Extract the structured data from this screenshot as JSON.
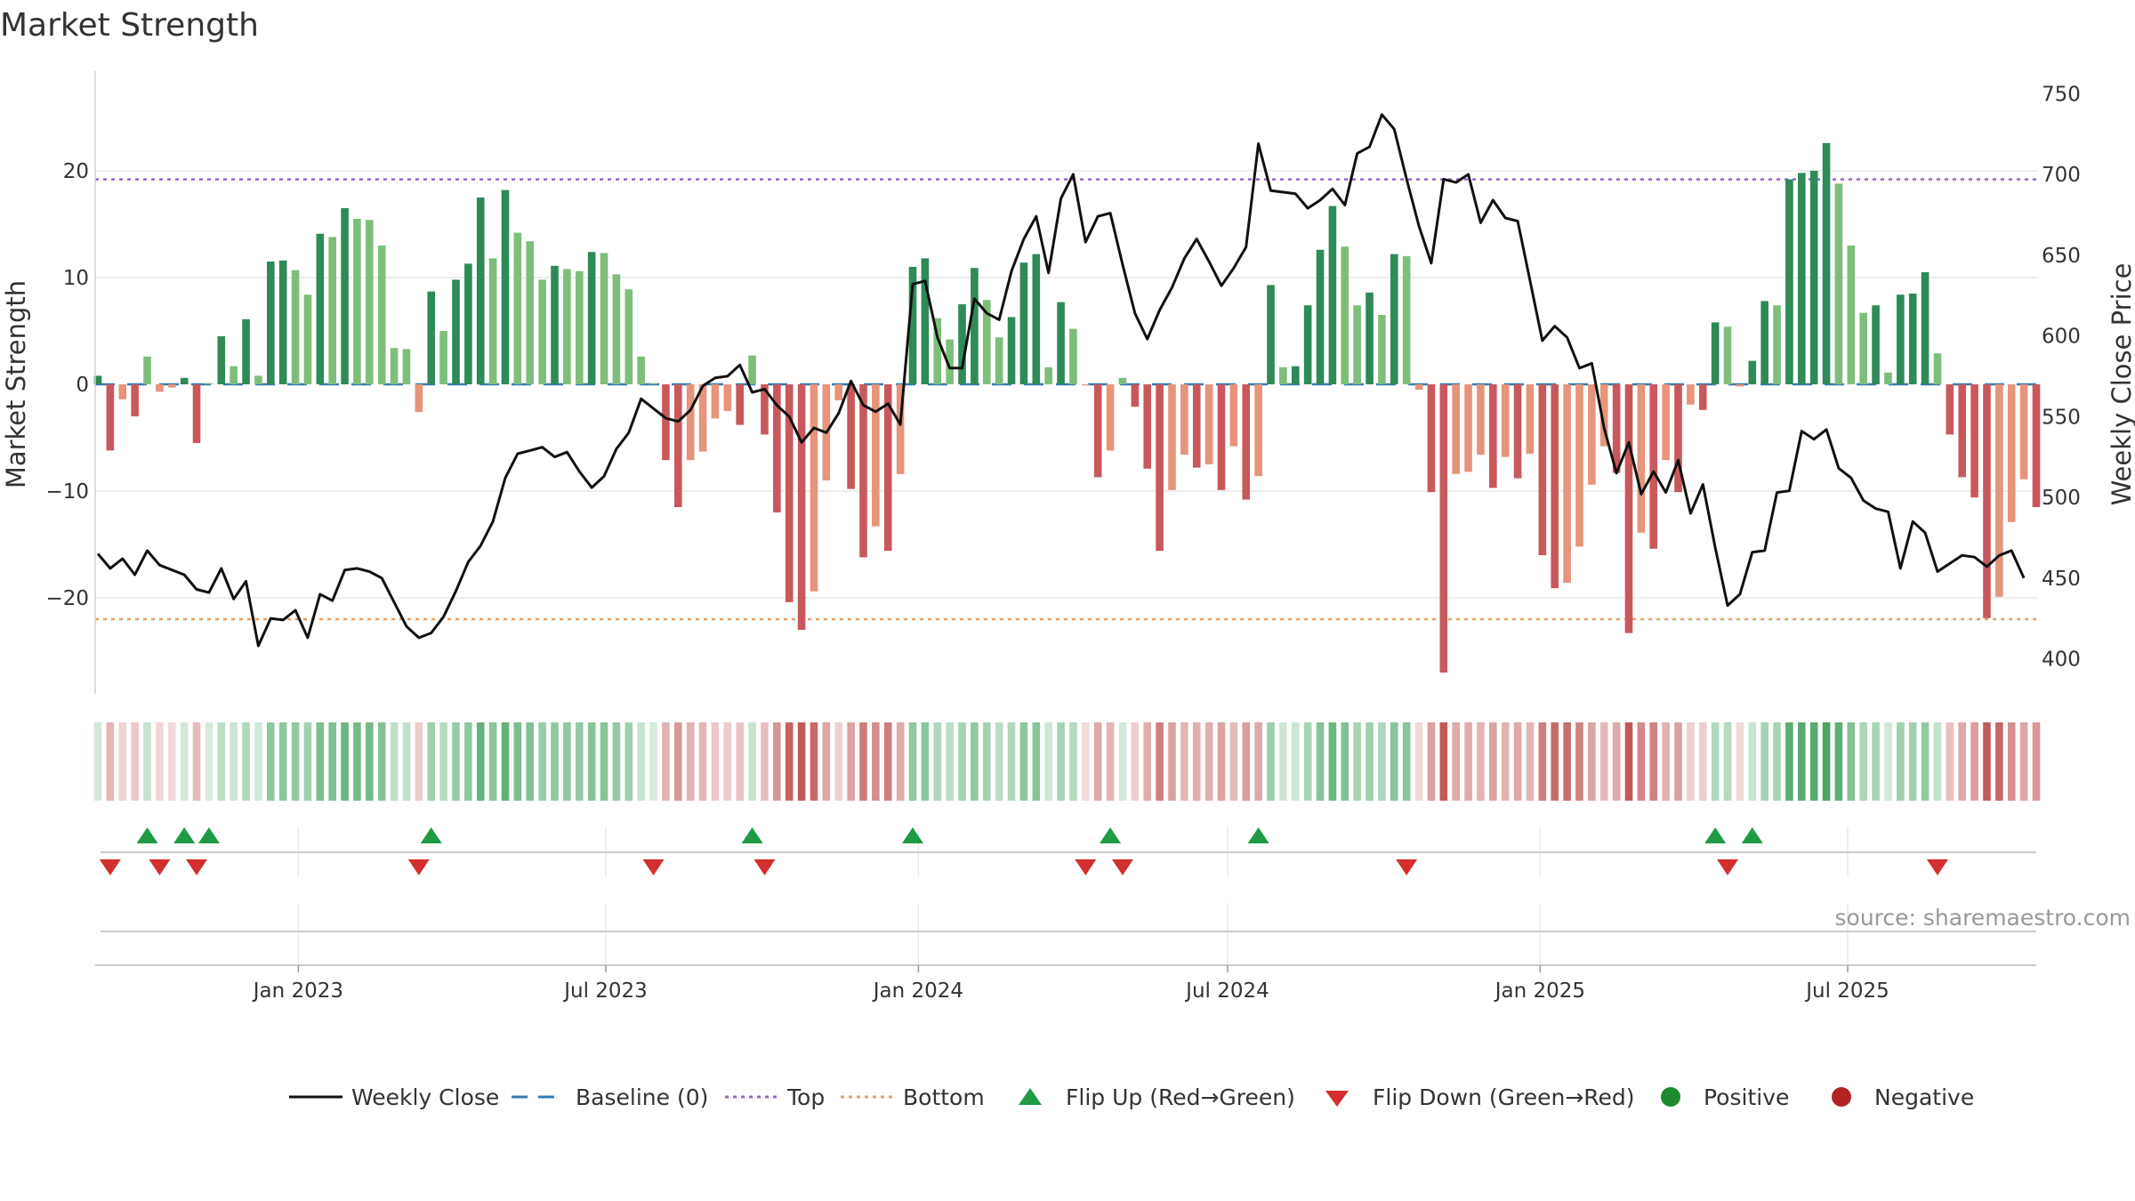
{
  "title": "Market Strength",
  "source_label": "source: sharemaestro.com",
  "chart_data": {
    "type": "bar",
    "title": "Market Strength",
    "ylabel": "Market Strength",
    "y2label": "Weekly Close Price",
    "ylim": [
      -29,
      29
    ],
    "y2lim": [
      386,
      767
    ],
    "yticks": [
      20,
      10,
      0,
      -10,
      -20
    ],
    "ytick_labels": [
      "20",
      "10",
      "0",
      "−10",
      "−20"
    ],
    "y2ticks": [
      750,
      700,
      650,
      600,
      550,
      500,
      450,
      400
    ],
    "x_start": "2022-09-05",
    "x_end": "2025-10-20",
    "x_ticks": [
      {
        "date": "2023-01-01",
        "label": "Jan 2023"
      },
      {
        "date": "2023-07-01",
        "label": "Jul 2023"
      },
      {
        "date": "2024-01-01",
        "label": "Jan 2024"
      },
      {
        "date": "2024-07-01",
        "label": "Jul 2024"
      },
      {
        "date": "2025-01-01",
        "label": "Jan 2025"
      },
      {
        "date": "2025-07-01",
        "label": "Jul 2025"
      }
    ],
    "top_line": 19.2,
    "bottom_line": -22.0,
    "baseline": 0,
    "colors": {
      "strong_green": "#2e8a57",
      "light_green": "#7dbf7a",
      "strong_red": "#c9585c",
      "light_red": "#e6947a",
      "price_line": "#111111",
      "top_line": "#9966cc",
      "bottom_line": "#e0a060",
      "baseline": "#3a7cb0",
      "flip_up": "#1f9a45",
      "flip_down": "#d32f2f",
      "positive": "#1e8a2e",
      "negative": "#b22424",
      "grid": "#e8e8e8"
    },
    "strength": [
      0.8,
      -6.2,
      -1.4,
      -3.0,
      2.6,
      -0.7,
      -0.3,
      0.6,
      -5.5,
      0.1,
      4.5,
      1.7,
      6.1,
      0.8,
      11.5,
      11.6,
      10.7,
      8.4,
      14.1,
      13.8,
      16.5,
      15.5,
      15.4,
      13.0,
      3.4,
      3.3,
      -2.6,
      8.7,
      5.0,
      9.8,
      11.3,
      17.5,
      11.8,
      18.2,
      14.2,
      13.4,
      9.8,
      11.1,
      10.8,
      10.6,
      12.4,
      12.3,
      10.3,
      8.9,
      2.6,
      0.1,
      -7.1,
      -11.5,
      -7.1,
      -6.3,
      -3.2,
      -2.5,
      -3.8,
      2.7,
      -4.7,
      -12.0,
      -20.4,
      -23.0,
      -19.4,
      -9.0,
      -1.5,
      -9.8,
      -16.2,
      -13.3,
      -15.6,
      -8.4,
      11.0,
      11.8,
      6.2,
      4.2,
      7.5,
      10.9,
      7.9,
      4.4,
      6.3,
      11.4,
      12.2,
      1.6,
      7.7,
      5.2,
      -0.1,
      -8.7,
      -6.2,
      0.6,
      -2.1,
      -7.9,
      -15.6,
      -9.9,
      -6.6,
      -7.8,
      -7.5,
      -9.9,
      -5.8,
      -10.8,
      -8.6,
      9.3,
      1.6,
      1.7,
      7.4,
      12.6,
      16.7,
      12.9,
      7.4,
      8.6,
      6.5,
      12.2,
      12.0,
      -0.5,
      -10.1,
      -27.0,
      -8.4,
      -8.2,
      -6.6,
      -9.7,
      -6.8,
      -8.8,
      -6.5,
      -16.0,
      -19.1,
      -18.6,
      -15.2,
      -9.4,
      -5.8,
      -8.3,
      -23.3,
      -13.9,
      -15.4,
      -7.1,
      -10.1,
      -1.9,
      -2.4,
      5.8,
      5.4,
      -0.2,
      2.2,
      7.8,
      7.4,
      19.2,
      19.8,
      20.0,
      22.6,
      18.8,
      13.0,
      6.7,
      7.4,
      1.1,
      8.4,
      8.5,
      10.5,
      2.9,
      -4.7,
      -8.7,
      -10.6,
      -21.9,
      -19.9,
      -12.9,
      -8.9,
      -11.5
    ],
    "price": [
      465.0,
      456.0,
      462.0,
      452.0,
      467.0,
      458.0,
      455.0,
      452.0,
      443.0,
      441.0,
      456.0,
      437.0,
      448.0,
      408.0,
      425.0,
      424.0,
      430.0,
      413.0,
      440.0,
      436.0,
      455.0,
      456.0,
      454.0,
      450.0,
      435.0,
      420.0,
      413.0,
      416.0,
      426.0,
      442.0,
      460.0,
      470.0,
      485.0,
      512.0,
      527.0,
      529.0,
      531.0,
      525.0,
      528.0,
      516.0,
      506.0,
      513.0,
      530.0,
      540.0,
      561.0,
      555.0,
      549.0,
      547.0,
      554.0,
      569.0,
      574.0,
      575.0,
      582.0,
      565.0,
      567.0,
      557.0,
      550.0,
      534.0,
      543.0,
      540.0,
      552.0,
      572.0,
      557.0,
      553.0,
      558.0,
      545.0,
      632.0,
      634.0,
      599.0,
      580.0,
      580.0,
      623.0,
      614.0,
      610.0,
      640.0,
      660.0,
      674.0,
      639.0,
      685.0,
      700.0,
      658.0,
      674.0,
      676.0,
      644.0,
      614.0,
      598.0,
      616.0,
      630.0,
      648.0,
      660.0,
      646.0,
      631.0,
      642.0,
      655.0,
      719.0,
      690.0,
      689.0,
      688.0,
      679.0,
      684.0,
      691.0,
      681.0,
      713.0,
      717.0,
      737.0,
      728.0,
      697.0,
      668.0,
      645.0,
      697.0,
      695.0,
      700.0,
      670.0,
      684.0,
      673.0,
      671.0,
      634.0,
      597.0,
      606.0,
      599.0,
      580.0,
      583.0,
      543.0,
      515.0,
      534.0,
      502.0,
      516.0,
      503.0,
      523.0,
      490.0,
      508.0,
      469.0,
      433.0,
      440.0,
      466.0,
      467.0,
      503.0,
      504.0,
      541.0,
      536.0,
      542.0,
      518.0,
      512.0,
      498.0,
      493.0,
      491.0,
      456.0,
      485.0,
      478.0,
      454.0,
      459.0,
      464.0,
      463.0,
      457.0,
      464.0,
      467.0,
      450.0
    ],
    "flip_up_index": [
      4,
      7,
      9,
      27,
      53,
      66,
      82,
      94,
      131,
      134
    ],
    "flip_down_index": [
      1,
      5,
      8,
      26,
      45,
      54,
      80,
      83,
      106,
      132,
      149
    ]
  },
  "legend": [
    {
      "label": "Weekly Close",
      "symbol": "line"
    },
    {
      "label": "Baseline (0)",
      "symbol": "dash"
    },
    {
      "label": "Top",
      "symbol": "dot-purple"
    },
    {
      "label": "Bottom",
      "symbol": "dot-orange"
    },
    {
      "label": "Flip Up (Red→Green)",
      "symbol": "triangle-up"
    },
    {
      "label": "Flip Down (Green→Red)",
      "symbol": "triangle-down"
    },
    {
      "label": "Positive",
      "symbol": "circle-green"
    },
    {
      "label": "Negative",
      "symbol": "circle-red"
    }
  ]
}
